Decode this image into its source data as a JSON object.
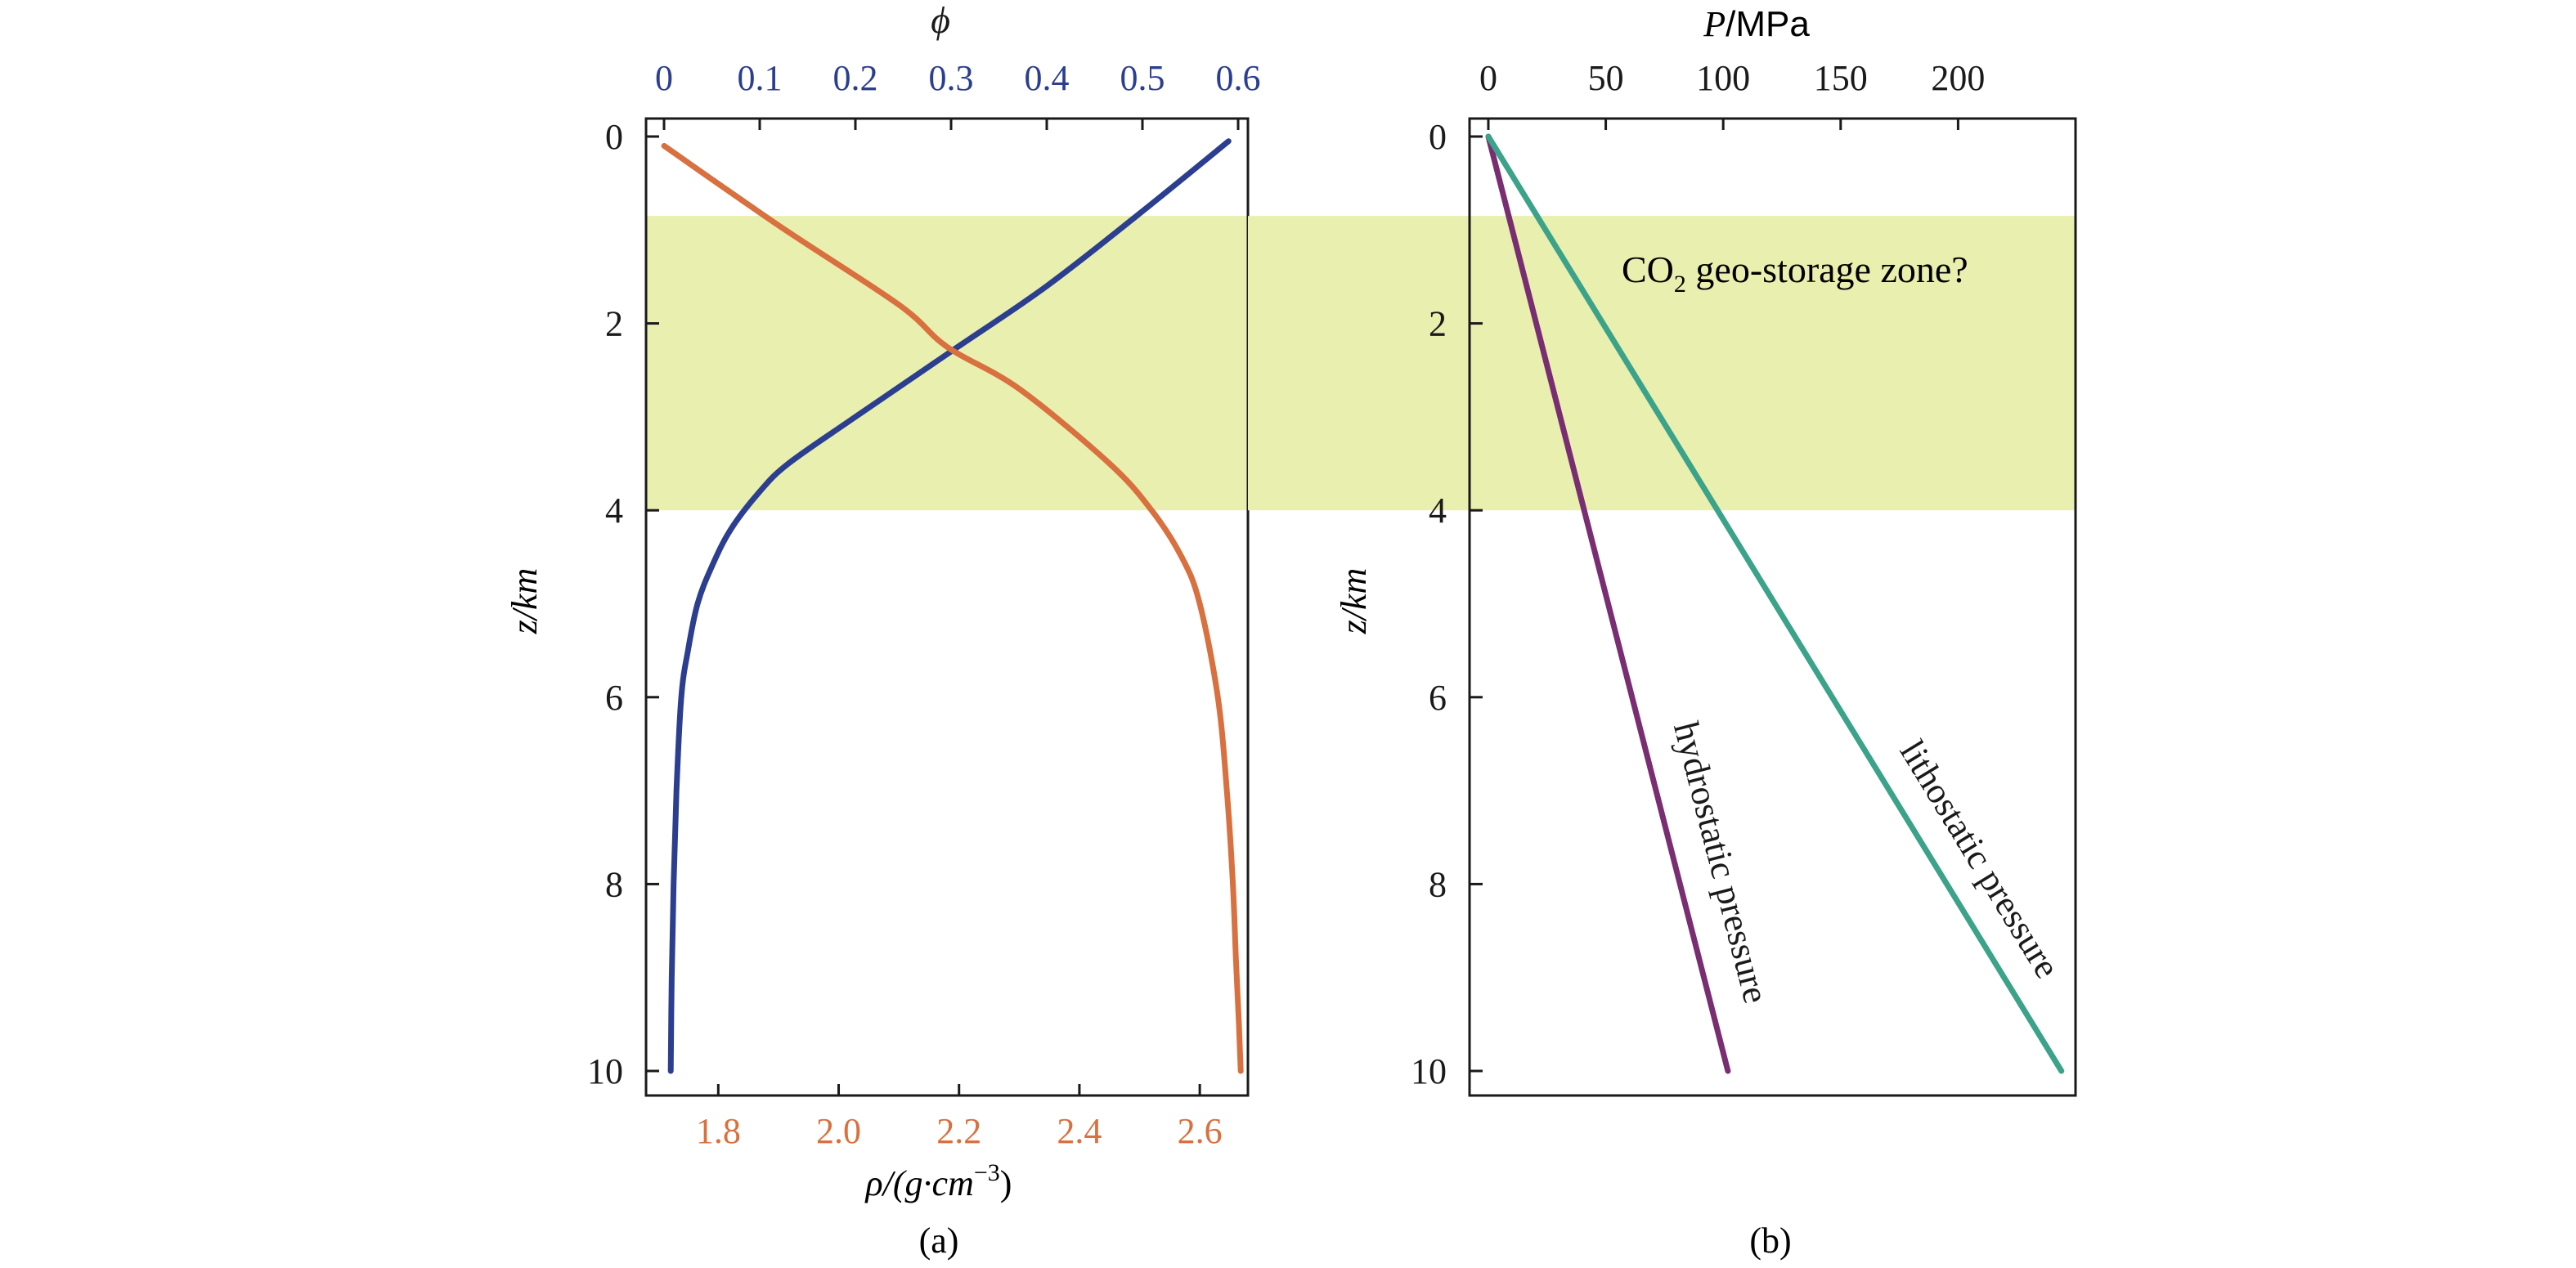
{
  "colors": {
    "zone": "#e9efae",
    "frame": "#1a1a1a",
    "text": "#1a1a1a",
    "phi_axis": "#2b3e8f",
    "rho_axis": "#d8703f"
  },
  "chart_data": [
    {
      "type": "line",
      "panel_label": "(a)",
      "ylabel": "z/km",
      "yaxis": {
        "ylim": [
          10,
          0
        ],
        "ticks": [
          "0",
          "2",
          "4",
          "6",
          "8",
          "10"
        ],
        "direction": "downward"
      },
      "top_axis": {
        "label": "ϕ",
        "xlim": [
          0,
          0.6
        ],
        "ticks": [
          "0",
          "0.1",
          "0.2",
          "0.3",
          "0.4",
          "0.5",
          "0.6"
        ],
        "color": "#2b3e8f"
      },
      "bottom_axis": {
        "label_base": "ρ/(g·cm",
        "label_sup": "−3",
        "label_tail": ")",
        "xlim": [
          1.68,
          2.68
        ],
        "ticks": [
          "1.8",
          "2.0",
          "2.2",
          "2.4",
          "2.6"
        ],
        "color": "#d8703f"
      },
      "shaded_band": {
        "from_depth": 0.85,
        "to_depth": 4.0
      },
      "series": [
        {
          "axis": "top",
          "color": "#2b3e8f",
          "x": [
            0.59,
            0.5,
            0.4,
            0.3,
            0.2,
            0.13,
            0.1,
            0.07,
            0.05,
            0.035,
            0.025,
            0.018,
            0.013,
            0.01,
            0.008,
            0.007
          ],
          "y": [
            0.05,
            0.8,
            1.6,
            2.3,
            3.0,
            3.5,
            3.8,
            4.2,
            4.6,
            5.0,
            5.5,
            6.0,
            7.0,
            8.0,
            9.0,
            10.0
          ]
        },
        {
          "axis": "bottom",
          "color": "#d8703f",
          "x": [
            1.71,
            1.9,
            2.1,
            2.18,
            2.3,
            2.45,
            2.52,
            2.57,
            2.6,
            2.63,
            2.645,
            2.655,
            2.66,
            2.665,
            2.668
          ],
          "y": [
            0.1,
            0.95,
            1.8,
            2.25,
            2.7,
            3.5,
            4.0,
            4.5,
            5.0,
            6.0,
            7.0,
            8.0,
            8.8,
            9.5,
            10.0
          ]
        }
      ]
    },
    {
      "type": "line",
      "panel_label": "(b)",
      "ylabel": "z/km",
      "yaxis": {
        "ylim": [
          10,
          0
        ],
        "ticks": [
          "0",
          "2",
          "4",
          "6",
          "8",
          "10"
        ],
        "direction": "downward"
      },
      "top_axis": {
        "label_italic": "P",
        "label_rest": "/MPa",
        "xlim": [
          -8,
          250
        ],
        "ticks": [
          "0",
          "50",
          "100",
          "150",
          "200"
        ]
      },
      "shaded_band": {
        "from_depth": 0.85,
        "to_depth": 4.0
      },
      "annotations": {
        "zone_prefix": "CO",
        "zone_sub": "2",
        "zone_suffix": " geo-storage zone?"
      },
      "series": [
        {
          "name": "hydrostatic pressure",
          "color": "#7a2e72",
          "x": [
            0,
            102
          ],
          "y": [
            0,
            10
          ]
        },
        {
          "name": "lithostatic pressure",
          "color": "#3ca38a",
          "x": [
            0,
            244
          ],
          "y": [
            0,
            10
          ]
        }
      ]
    }
  ]
}
